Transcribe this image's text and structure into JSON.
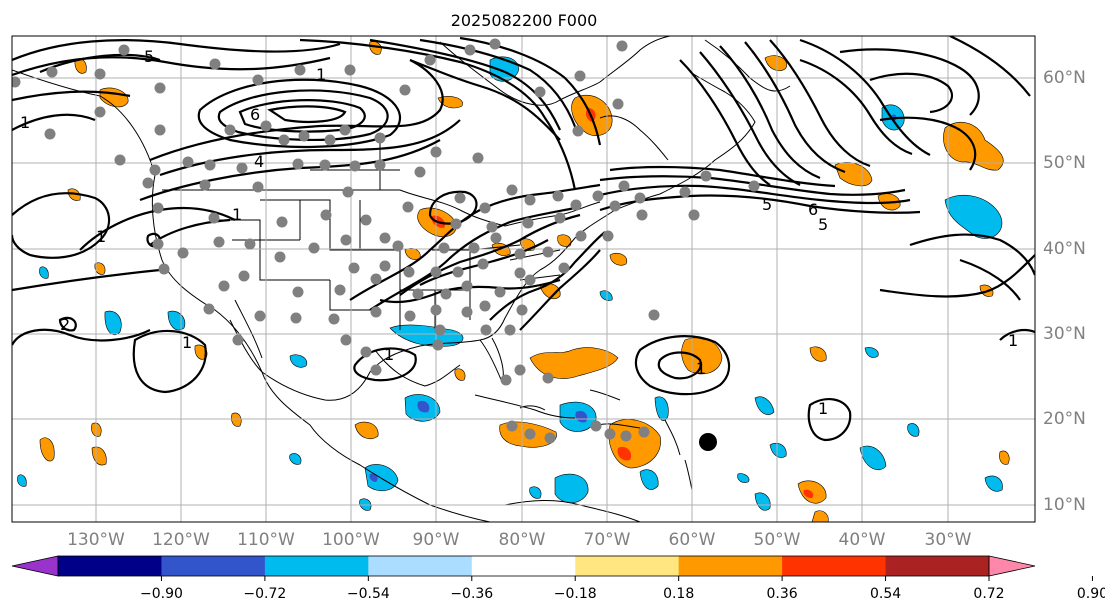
{
  "title": "2025082200 F000",
  "lat_labels": [
    "60°N",
    "50°N",
    "40°N",
    "30°N",
    "20°N",
    "10°N"
  ],
  "lon_labels": [
    "130°W",
    "120°W",
    "110°W",
    "100°W",
    "90°W",
    "80°W",
    "70°W",
    "60°W",
    "50°W",
    "40°W",
    "30°W"
  ],
  "colorbar": {
    "colors": [
      "#9933cc",
      "#000088",
      "#3355cc",
      "#00bbee",
      "#aaddff",
      "#ffffff",
      "#ffe680",
      "#ff9900",
      "#ff3300",
      "#aa2222",
      "#ff88aa"
    ],
    "ticks": [
      "−0.90",
      "−0.72",
      "−0.54",
      "−0.36",
      "−0.18",
      "0.18",
      "0.36",
      "0.54",
      "0.72",
      "0.90"
    ]
  },
  "contour_labels": {
    "a": "5",
    "b": "1",
    "c": "6",
    "d": "4",
    "e": "1",
    "f": "1",
    "g": "5",
    "h": "6",
    "i": "5",
    "j": "1",
    "k": "2",
    "l": "1",
    "m": "1",
    "n": "1",
    "o": "1",
    "p": "1"
  },
  "colors": {
    "grid": "#b0b0b0",
    "marker": "#808080",
    "contour": "#000000"
  }
}
